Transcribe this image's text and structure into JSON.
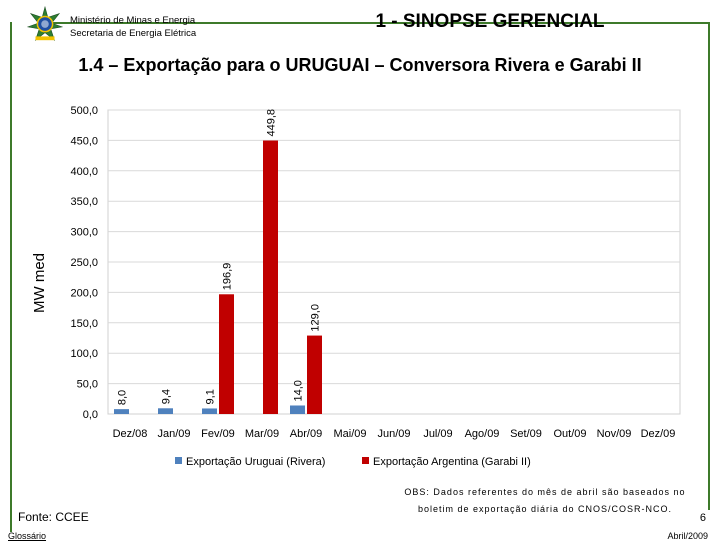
{
  "header": {
    "ministry_line1": "Ministério de Minas e Energia",
    "ministry_line2": "Secretaria de Energia Elétrica",
    "section_title": "1 - SINOPSE GERENCIAL"
  },
  "slide_title": "1.4 – Exportação para o URUGUAI – Conversora Rivera e Garabi II",
  "colors": {
    "uruguai": "#4f81bd",
    "argentina": "#c00000",
    "frame": "#3d7a2a"
  },
  "chart_data": {
    "type": "bar",
    "title": "",
    "xlabel": "",
    "ylabel": "MW med",
    "ylim": [
      0,
      500
    ],
    "yticks": [
      0,
      50,
      100,
      150,
      200,
      250,
      300,
      350,
      400,
      450,
      500
    ],
    "ytick_labels": [
      "0,0",
      "50,0",
      "100,0",
      "150,0",
      "200,0",
      "250,0",
      "300,0",
      "350,0",
      "400,0",
      "450,0",
      "500,0"
    ],
    "categories": [
      "Dez/08",
      "Jan/09",
      "Fev/09",
      "Mar/09",
      "Abr/09",
      "Mai/09",
      "Jun/09",
      "Jul/09",
      "Ago/09",
      "Set/09",
      "Out/09",
      "Nov/09",
      "Dez/09"
    ],
    "series": [
      {
        "name": "Exportação Uruguai (Rivera)",
        "values": [
          8.0,
          9.4,
          9.1,
          null,
          14.0,
          null,
          null,
          null,
          null,
          null,
          null,
          null,
          null
        ],
        "labels": [
          "8,0",
          "9,4",
          "9,1",
          null,
          "14,0",
          null,
          null,
          null,
          null,
          null,
          null,
          null,
          null
        ]
      },
      {
        "name": "Exportação Argentina (Garabi II)",
        "values": [
          null,
          null,
          196.9,
          449.8,
          129.0,
          null,
          null,
          null,
          null,
          null,
          null,
          null,
          null
        ],
        "labels": [
          null,
          null,
          "196,9",
          "449,8",
          "129,0",
          null,
          null,
          null,
          null,
          null,
          null,
          null,
          null
        ]
      }
    ],
    "legend_position": "bottom"
  },
  "footer": {
    "obs_line1": "OBS: Dados referentes do mês de abril são baseados no",
    "obs_line2": "boletim de exportação diária do CNOS/COSR-NCO.",
    "source": "Fonte: CCEE",
    "glossary": "Glossário",
    "page_number": "6",
    "date": "Abril/2009"
  }
}
